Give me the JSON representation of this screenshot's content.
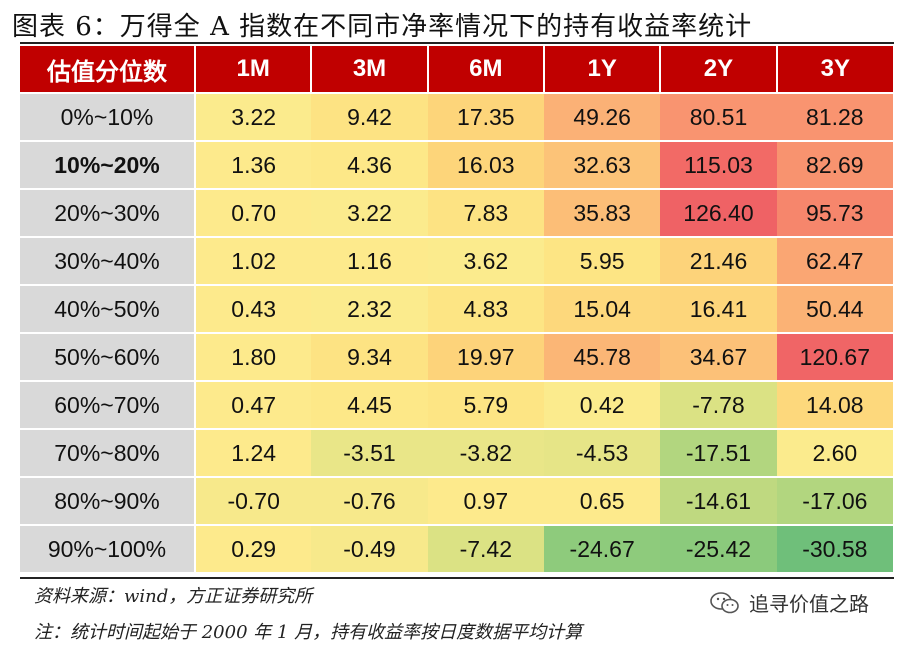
{
  "title": "图表 6：万得全 A 指数在不同市净率情况下的持有收益率统计",
  "table": {
    "headers": [
      "估值分位数",
      "1M",
      "3M",
      "6M",
      "1Y",
      "2Y",
      "3Y"
    ],
    "rows": [
      {
        "label": "0%~10%",
        "bold": false,
        "values": [
          "3.22",
          "9.42",
          "17.35",
          "49.26",
          "80.51",
          "81.28"
        ],
        "colors": [
          "#fbeb8d",
          "#fde383",
          "#fdd57a",
          "#fbb176",
          "#f99470",
          "#f99470"
        ]
      },
      {
        "label": "10%~20%",
        "bold": true,
        "values": [
          "1.36",
          "4.36",
          "16.03",
          "32.63",
          "115.03",
          "82.69"
        ],
        "colors": [
          "#fdea8c",
          "#fde888",
          "#fdd57a",
          "#fcc378",
          "#f26a66",
          "#f8936f"
        ]
      },
      {
        "label": "20%~30%",
        "bold": false,
        "values": [
          "0.70",
          "3.22",
          "7.83",
          "35.83",
          "126.40",
          "95.73"
        ],
        "colors": [
          "#fdea8c",
          "#fbeb8d",
          "#fde383",
          "#fcbe77",
          "#ef6265",
          "#f6866c"
        ]
      },
      {
        "label": "30%~40%",
        "bold": false,
        "values": [
          "1.02",
          "1.16",
          "3.62",
          "5.95",
          "21.46",
          "62.47"
        ],
        "colors": [
          "#fdea8c",
          "#fdea8c",
          "#fbeb8d",
          "#fde584",
          "#fdd37a",
          "#faa673"
        ]
      },
      {
        "label": "40%~50%",
        "bold": false,
        "values": [
          "0.43",
          "2.32",
          "4.83",
          "15.04",
          "16.41",
          "50.44"
        ],
        "colors": [
          "#fdea8c",
          "#fbeb8d",
          "#fde584",
          "#fdd87c",
          "#fdd67b",
          "#fbb275"
        ]
      },
      {
        "label": "50%~60%",
        "bold": false,
        "values": [
          "1.80",
          "9.34",
          "19.97",
          "45.78",
          "34.67",
          "120.67"
        ],
        "colors": [
          "#fdea8c",
          "#fde383",
          "#fdd37a",
          "#fbb676",
          "#fcc178",
          "#f06566"
        ]
      },
      {
        "label": "60%~70%",
        "bold": false,
        "values": [
          "0.47",
          "4.45",
          "5.79",
          "0.42",
          "-7.78",
          "14.08"
        ],
        "colors": [
          "#fdea8c",
          "#fde888",
          "#fde584",
          "#fbeb8d",
          "#dbe284",
          "#fdd87c"
        ]
      },
      {
        "label": "70%~80%",
        "bold": false,
        "values": [
          "1.24",
          "-3.51",
          "-3.82",
          "-4.53",
          "-17.51",
          "2.60"
        ],
        "colors": [
          "#fdea8c",
          "#e9e688",
          "#e9e688",
          "#e6e587",
          "#b2d67f",
          "#fbeb8d"
        ]
      },
      {
        "label": "80%~90%",
        "bold": false,
        "values": [
          "-0.70",
          "-0.76",
          "0.97",
          "0.65",
          "-14.61",
          "-17.06"
        ],
        "colors": [
          "#f7e98b",
          "#f7e98b",
          "#fdea8c",
          "#fdea8c",
          "#bfd980",
          "#b2d67f"
        ]
      },
      {
        "label": "90%~100%",
        "bold": false,
        "values": [
          "0.29",
          "-0.49",
          "-7.42",
          "-24.67",
          "-25.42",
          "-30.58"
        ],
        "colors": [
          "#fdea8c",
          "#f7e98b",
          "#dbe284",
          "#8ecb7c",
          "#8bca7c",
          "#6fbf7a"
        ]
      }
    ]
  },
  "source": "资料来源：wind，方正证券研究所",
  "note": "注：统计时间起始于 2000 年 1 月，持有收益率按日度数据平均计算",
  "watermark": "追寻价值之路",
  "watermark_icon": "wechat-icon"
}
